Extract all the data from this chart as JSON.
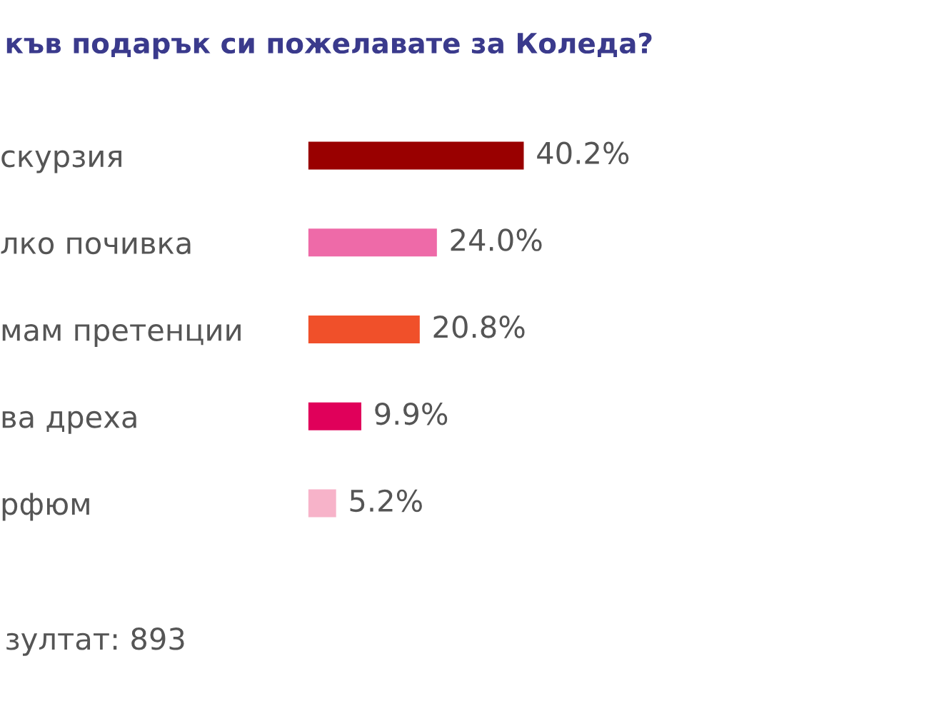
{
  "chart_data": {
    "type": "bar",
    "orientation": "horizontal",
    "title": "къв подарък си пожелавате за Коледа?",
    "categories": [
      "скурзия",
      "лко почивка",
      "мам претенции",
      "ва дреха",
      "рфюм"
    ],
    "values": [
      40.2,
      24.0,
      20.8,
      9.9,
      5.2
    ],
    "colors": [
      "#990000",
      "#ee6aa8",
      "#f0502a",
      "#e0005a",
      "#f7b3c9"
    ],
    "value_labels": [
      "40.2%",
      "24.0%",
      "20.8%",
      "9.9%",
      "5.2%"
    ],
    "annotations": [
      "зултат: 893"
    ],
    "grid": false,
    "legend": false
  }
}
